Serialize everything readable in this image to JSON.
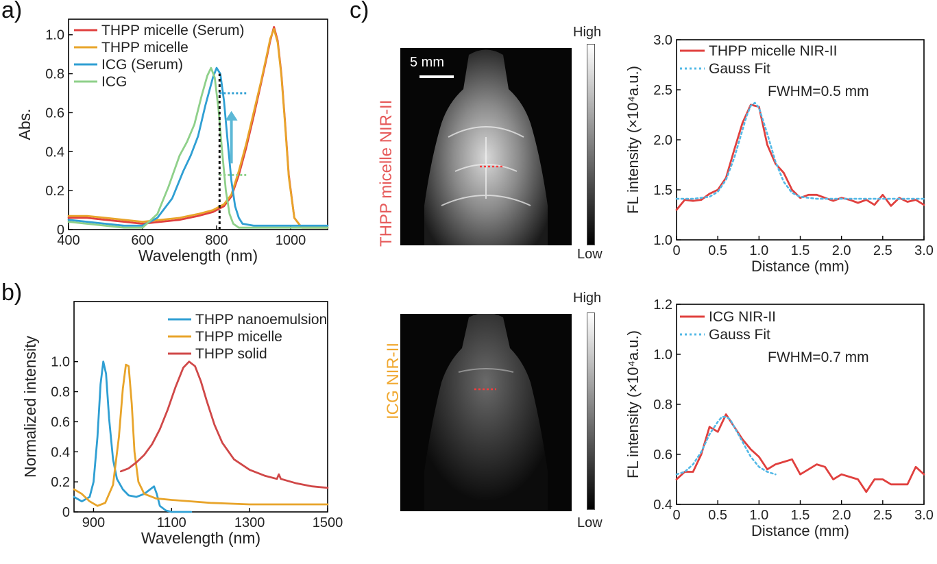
{
  "panels": {
    "a": "a)",
    "b": "b)",
    "c": "c)"
  },
  "images": {
    "top": {
      "side_label": "THPP micelle NIR-II",
      "scale_bar": "5 mm"
    },
    "bottom": {
      "side_label": "ICG NIR-II"
    },
    "colorbar_high": "High",
    "colorbar_low": "Low"
  },
  "colors": {
    "red": "#e0403e",
    "orange": "#e8a42a",
    "blue": "#2f9fd3",
    "green": "#8fd08a",
    "dark_red": "#d04848",
    "fit_blue": "#52b8e6",
    "side_red": "#e65a5a",
    "side_orange": "#f0a830"
  },
  "chart_data": [
    {
      "id": "a",
      "type": "line",
      "xlabel": "Wavelength (nm)",
      "ylabel": "Abs.",
      "xlim": [
        400,
        1100
      ],
      "ylim": [
        0,
        1.08
      ],
      "xticks": [
        400,
        600,
        800,
        1000
      ],
      "yticks": [
        0,
        0.2,
        0.4,
        0.6,
        0.8,
        1.0
      ],
      "ytick_labels": [
        "0",
        "0.2",
        "0.4",
        "0.6",
        "0.8",
        "1.0"
      ],
      "legend_position": "top-left",
      "series": [
        {
          "name": "THPP micelle (Serum)",
          "color": "#e0403e",
          "x": [
            400,
            450,
            500,
            550,
            600,
            650,
            700,
            750,
            790,
            820,
            840,
            860,
            880,
            900,
            920,
            935,
            945,
            955,
            965,
            975,
            985,
            995,
            1010,
            1030,
            1060,
            1100
          ],
          "y": [
            0.06,
            0.06,
            0.05,
            0.04,
            0.03,
            0.04,
            0.05,
            0.07,
            0.09,
            0.12,
            0.17,
            0.28,
            0.42,
            0.58,
            0.75,
            0.88,
            0.97,
            1.04,
            0.97,
            0.8,
            0.55,
            0.28,
            0.06,
            0.01,
            0.01,
            0.01
          ]
        },
        {
          "name": "THPP micelle",
          "color": "#e8a42a",
          "x": [
            400,
            450,
            500,
            550,
            600,
            650,
            700,
            750,
            790,
            820,
            840,
            860,
            880,
            900,
            920,
            935,
            945,
            955,
            965,
            975,
            985,
            995,
            1010,
            1030,
            1060,
            1100
          ],
          "y": [
            0.07,
            0.07,
            0.06,
            0.05,
            0.04,
            0.05,
            0.06,
            0.08,
            0.1,
            0.13,
            0.18,
            0.3,
            0.44,
            0.6,
            0.76,
            0.89,
            0.98,
            1.03,
            0.96,
            0.79,
            0.54,
            0.27,
            0.06,
            0.01,
            0.01,
            0.01
          ]
        },
        {
          "name": "ICG (Serum)",
          "color": "#2f9fd3",
          "x": [
            400,
            450,
            500,
            550,
            600,
            640,
            680,
            710,
            730,
            750,
            770,
            790,
            800,
            810,
            820,
            830,
            840,
            850,
            860,
            870,
            900,
            950,
            1000,
            1100
          ],
          "y": [
            0.05,
            0.04,
            0.03,
            0.02,
            0.02,
            0.06,
            0.16,
            0.3,
            0.38,
            0.48,
            0.64,
            0.78,
            0.83,
            0.8,
            0.66,
            0.45,
            0.25,
            0.12,
            0.06,
            0.03,
            0.02,
            0.02,
            0.02,
            0.02
          ]
        },
        {
          "name": "ICG",
          "color": "#8fd08a",
          "x": [
            400,
            450,
            500,
            550,
            600,
            640,
            670,
            700,
            720,
            740,
            760,
            775,
            785,
            795,
            805,
            815,
            825,
            835,
            845,
            860,
            900,
            950,
            1000,
            1100
          ],
          "y": [
            0.04,
            0.03,
            0.02,
            0.01,
            0.01,
            0.08,
            0.22,
            0.38,
            0.45,
            0.54,
            0.69,
            0.79,
            0.83,
            0.78,
            0.62,
            0.4,
            0.2,
            0.08,
            0.03,
            0.01,
            0.01,
            0.01,
            0.01,
            0.01
          ]
        }
      ]
    },
    {
      "id": "b",
      "type": "line",
      "xlabel": "Wavelength (nm)",
      "ylabel": "Normalized intensity",
      "xlim": [
        850,
        1500
      ],
      "ylim": [
        0,
        1.4
      ],
      "xticks": [
        900,
        1100,
        1300,
        1500
      ],
      "yticks": [
        0,
        0.2,
        0.4,
        0.6,
        0.8,
        1.0
      ],
      "ytick_labels": [
        "0",
        "0.2",
        "0.4",
        "0.6",
        "0.8",
        "1.0"
      ],
      "legend_position": "top-right",
      "series": [
        {
          "name": "THPP nanoemulsion",
          "color": "#2f9fd3",
          "x": [
            850,
            870,
            890,
            900,
            910,
            918,
            925,
            932,
            940,
            950,
            960,
            975,
            990,
            1010,
            1030,
            1045,
            1055,
            1062,
            1070,
            1085,
            1100,
            1150
          ],
          "y": [
            0.1,
            0.07,
            0.1,
            0.2,
            0.5,
            0.85,
            1.0,
            0.92,
            0.62,
            0.35,
            0.22,
            0.15,
            0.11,
            0.1,
            0.12,
            0.15,
            0.17,
            0.12,
            0.04,
            0.01,
            0.0,
            0.0
          ]
        },
        {
          "name": "THPP micelle",
          "color": "#e8a42a",
          "x": [
            850,
            870,
            890,
            910,
            930,
            950,
            965,
            975,
            983,
            990,
            998,
            1005,
            1015,
            1030,
            1060,
            1100,
            1150,
            1200,
            1300,
            1400,
            1500
          ],
          "y": [
            0.15,
            0.12,
            0.07,
            0.04,
            0.06,
            0.18,
            0.5,
            0.82,
            0.98,
            0.97,
            0.72,
            0.4,
            0.2,
            0.12,
            0.09,
            0.08,
            0.07,
            0.06,
            0.05,
            0.05,
            0.05
          ]
        },
        {
          "name": "THPP solid",
          "color": "#d04848",
          "x": [
            970,
            990,
            1010,
            1030,
            1050,
            1070,
            1090,
            1110,
            1130,
            1145,
            1160,
            1175,
            1190,
            1210,
            1230,
            1260,
            1300,
            1340,
            1370,
            1375,
            1380,
            1420,
            1460,
            1500
          ],
          "y": [
            0.27,
            0.29,
            0.33,
            0.38,
            0.45,
            0.55,
            0.68,
            0.83,
            0.96,
            1.0,
            0.97,
            0.87,
            0.74,
            0.58,
            0.46,
            0.35,
            0.28,
            0.24,
            0.22,
            0.25,
            0.22,
            0.19,
            0.17,
            0.16
          ]
        }
      ]
    },
    {
      "id": "c1",
      "type": "line",
      "xlabel": "Distance (mm)",
      "ylabel": "FL intensity (×10⁴a.u.)",
      "xlim": [
        0,
        3.0
      ],
      "ylim": [
        1.0,
        3.0
      ],
      "xticks": [
        0,
        0.5,
        1.0,
        1.5,
        2.0,
        2.5,
        3.0
      ],
      "xtick_labels": [
        "0",
        "0.5",
        "1.0",
        "1.5",
        "2.0",
        "2.5",
        "3.0"
      ],
      "yticks": [
        1.0,
        1.5,
        2.0,
        2.5,
        3.0
      ],
      "ytick_labels": [
        "1.0",
        "1.5",
        "2.0",
        "2.5",
        "3.0"
      ],
      "annotation": "FWHM=0.5 mm",
      "legend_position": "top-left",
      "series": [
        {
          "name": "THPP micelle NIR-II",
          "color": "#e0403e",
          "style": "solid",
          "x": [
            0,
            0.1,
            0.2,
            0.3,
            0.4,
            0.5,
            0.6,
            0.7,
            0.8,
            0.9,
            1.0,
            1.1,
            1.2,
            1.3,
            1.4,
            1.5,
            1.6,
            1.7,
            1.8,
            1.9,
            2.0,
            2.1,
            2.2,
            2.3,
            2.4,
            2.5,
            2.6,
            2.7,
            2.8,
            2.9,
            3.0
          ],
          "y": [
            1.3,
            1.4,
            1.39,
            1.4,
            1.46,
            1.5,
            1.62,
            1.9,
            2.17,
            2.35,
            2.33,
            1.95,
            1.76,
            1.67,
            1.5,
            1.42,
            1.45,
            1.45,
            1.42,
            1.39,
            1.42,
            1.4,
            1.37,
            1.4,
            1.35,
            1.45,
            1.34,
            1.42,
            1.38,
            1.4,
            1.35
          ]
        },
        {
          "name": "Gauss Fit",
          "color": "#52b8e6",
          "style": "dotted",
          "x": [
            0,
            0.2,
            0.4,
            0.5,
            0.6,
            0.7,
            0.8,
            0.85,
            0.9,
            0.95,
            1.0,
            1.1,
            1.2,
            1.3,
            1.4,
            1.5,
            1.7,
            2.0,
            2.5,
            3.0
          ],
          "y": [
            1.41,
            1.41,
            1.43,
            1.48,
            1.6,
            1.82,
            2.1,
            2.24,
            2.34,
            2.37,
            2.32,
            2.06,
            1.78,
            1.58,
            1.47,
            1.43,
            1.41,
            1.41,
            1.41,
            1.41
          ]
        }
      ]
    },
    {
      "id": "c2",
      "type": "line",
      "xlabel": "Distance (mm)",
      "ylabel": "FL intensity (×10⁴a.u.)",
      "xlim": [
        0,
        3.0
      ],
      "ylim": [
        0.4,
        1.2
      ],
      "xticks": [
        0,
        0.5,
        1.0,
        1.5,
        2.0,
        2.5,
        3.0
      ],
      "xtick_labels": [
        "0",
        "0.5",
        "1.0",
        "1.5",
        "2.0",
        "2.5",
        "3.0"
      ],
      "yticks": [
        0.4,
        0.6,
        0.8,
        1.0,
        1.2
      ],
      "ytick_labels": [
        "0.4",
        "0.6",
        "0.8",
        "1.0",
        "1.2"
      ],
      "annotation": "FWHM=0.7 mm",
      "legend_position": "top-left",
      "series": [
        {
          "name": "ICG NIR-II",
          "color": "#e0403e",
          "style": "solid",
          "x": [
            0,
            0.1,
            0.2,
            0.3,
            0.4,
            0.5,
            0.6,
            0.7,
            0.8,
            0.9,
            1.0,
            1.1,
            1.2,
            1.3,
            1.4,
            1.5,
            1.6,
            1.7,
            1.8,
            1.9,
            2.0,
            2.1,
            2.2,
            2.3,
            2.4,
            2.5,
            2.6,
            2.7,
            2.8,
            2.9,
            3.0
          ],
          "y": [
            0.5,
            0.53,
            0.53,
            0.6,
            0.71,
            0.69,
            0.76,
            0.71,
            0.66,
            0.62,
            0.59,
            0.54,
            0.56,
            0.57,
            0.58,
            0.52,
            0.54,
            0.56,
            0.55,
            0.5,
            0.52,
            0.51,
            0.5,
            0.45,
            0.5,
            0.5,
            0.48,
            0.48,
            0.48,
            0.55,
            0.52
          ]
        },
        {
          "name": "Gauss Fit",
          "color": "#52b8e6",
          "style": "dotted",
          "x": [
            0,
            0.1,
            0.2,
            0.3,
            0.4,
            0.5,
            0.55,
            0.6,
            0.65,
            0.7,
            0.8,
            0.9,
            1.0,
            1.1,
            1.2
          ],
          "y": [
            0.52,
            0.53,
            0.56,
            0.61,
            0.68,
            0.73,
            0.75,
            0.75,
            0.74,
            0.71,
            0.65,
            0.59,
            0.55,
            0.53,
            0.52
          ]
        }
      ]
    }
  ]
}
